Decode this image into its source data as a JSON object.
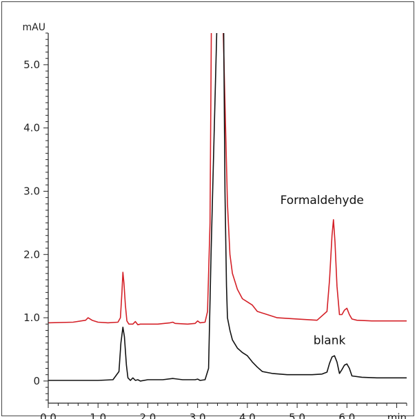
{
  "chart_data": {
    "type": "line",
    "xlabel": "min",
    "ylabel": "mAU",
    "xlim": [
      0,
      7.2
    ],
    "ylim": [
      -0.35,
      5.5
    ],
    "x_ticks": [
      0,
      1,
      2,
      3,
      4,
      5,
      6
    ],
    "x_tick_labels": [
      "0.0",
      "1.0",
      "2.0",
      "3.0",
      "4.0",
      "5.0",
      "6.0"
    ],
    "y_ticks": [
      0,
      1,
      2,
      3,
      4,
      5
    ],
    "y_tick_labels": [
      "0",
      "1.0",
      "2.0",
      "3.0",
      "4.0",
      "5.0"
    ],
    "grid": false,
    "series": [
      {
        "name": "Formaldehyde",
        "color": "#d42027",
        "x": [
          0.0,
          0.5,
          0.75,
          0.8,
          0.88,
          1.0,
          1.2,
          1.4,
          1.45,
          1.48,
          1.5,
          1.52,
          1.55,
          1.58,
          1.62,
          1.7,
          1.75,
          1.8,
          1.85,
          2.0,
          2.2,
          2.45,
          2.5,
          2.55,
          2.8,
          2.95,
          3.0,
          3.05,
          3.15,
          3.2,
          3.25,
          3.28,
          3.4,
          3.5,
          3.55,
          3.6,
          3.65,
          3.7,
          3.8,
          3.9,
          4.0,
          4.1,
          4.2,
          4.4,
          4.6,
          5.0,
          5.4,
          5.6,
          5.65,
          5.7,
          5.73,
          5.76,
          5.8,
          5.85,
          5.9,
          5.95,
          6.0,
          6.05,
          6.1,
          6.2,
          6.5,
          7.0,
          7.2
        ],
        "y": [
          0.92,
          0.93,
          0.96,
          1.0,
          0.96,
          0.93,
          0.92,
          0.93,
          1.0,
          1.4,
          1.72,
          1.55,
          1.2,
          0.95,
          0.9,
          0.9,
          0.94,
          0.89,
          0.9,
          0.9,
          0.9,
          0.92,
          0.93,
          0.91,
          0.9,
          0.91,
          0.95,
          0.92,
          0.93,
          1.1,
          2.5,
          6.0,
          6.0,
          6.0,
          4.4,
          2.8,
          2.0,
          1.7,
          1.45,
          1.3,
          1.25,
          1.2,
          1.1,
          1.05,
          1.0,
          0.98,
          0.96,
          1.1,
          1.6,
          2.3,
          2.55,
          2.2,
          1.5,
          1.05,
          1.05,
          1.12,
          1.15,
          1.05,
          0.98,
          0.96,
          0.95,
          0.95,
          0.95
        ]
      },
      {
        "name": "blank",
        "color": "#111111",
        "x": [
          0.0,
          0.5,
          1.0,
          1.3,
          1.42,
          1.46,
          1.5,
          1.53,
          1.57,
          1.6,
          1.65,
          1.7,
          1.75,
          1.8,
          1.85,
          2.0,
          2.3,
          2.5,
          2.7,
          2.95,
          3.0,
          3.05,
          3.15,
          3.22,
          3.27,
          3.4,
          3.5,
          3.52,
          3.55,
          3.58,
          3.6,
          3.65,
          3.7,
          3.8,
          3.9,
          4.0,
          4.1,
          4.2,
          4.3,
          4.5,
          4.8,
          5.0,
          5.3,
          5.5,
          5.6,
          5.65,
          5.7,
          5.75,
          5.8,
          5.85,
          5.9,
          5.95,
          6.0,
          6.05,
          6.1,
          6.3,
          6.6,
          7.0,
          7.2
        ],
        "y": [
          0.01,
          0.01,
          0.01,
          0.02,
          0.15,
          0.6,
          0.85,
          0.7,
          0.25,
          0.05,
          0.01,
          0.05,
          0.01,
          0.02,
          0.0,
          0.02,
          0.02,
          0.04,
          0.02,
          0.02,
          0.03,
          0.01,
          0.02,
          0.2,
          2.0,
          6.0,
          6.0,
          6.0,
          3.0,
          1.5,
          1.0,
          0.8,
          0.65,
          0.52,
          0.45,
          0.4,
          0.3,
          0.22,
          0.15,
          0.12,
          0.1,
          0.1,
          0.1,
          0.11,
          0.14,
          0.28,
          0.38,
          0.4,
          0.3,
          0.12,
          0.18,
          0.25,
          0.27,
          0.2,
          0.08,
          0.06,
          0.05,
          0.05,
          0.05
        ]
      }
    ],
    "annotations": [
      {
        "text": "Formaldehyde",
        "x": 5.5,
        "y": 2.8
      },
      {
        "text": "blank",
        "x": 5.65,
        "y": 0.58
      }
    ]
  }
}
